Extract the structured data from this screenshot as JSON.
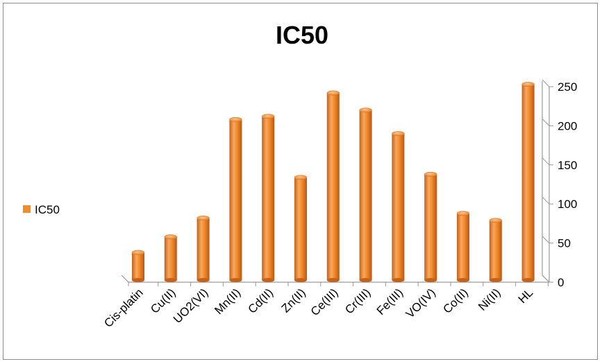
{
  "chart_data": {
    "type": "bar",
    "title": "IC50",
    "categories": [
      "Cis-platin",
      "Cu(II)",
      "UO2(VI)",
      "Mn(II)",
      "Cd(II)",
      "Zn(II)",
      "Ce(III)",
      "Cr(III)",
      "Fe(III)",
      "VO(IV)",
      "Co(II)",
      "Ni(II)",
      "HL"
    ],
    "series": [
      {
        "name": "IC50",
        "values": [
          38,
          58,
          82,
          208,
          212,
          134,
          242,
          220,
          190,
          138,
          88,
          79,
          253
        ],
        "color": "#F28C28"
      }
    ],
    "y_ticks": [
      "0",
      "50",
      "100",
      "150",
      "200",
      "250"
    ],
    "ylim": [
      0,
      250
    ],
    "y_axis_side": "right",
    "legend_position": "left",
    "grid": false
  }
}
